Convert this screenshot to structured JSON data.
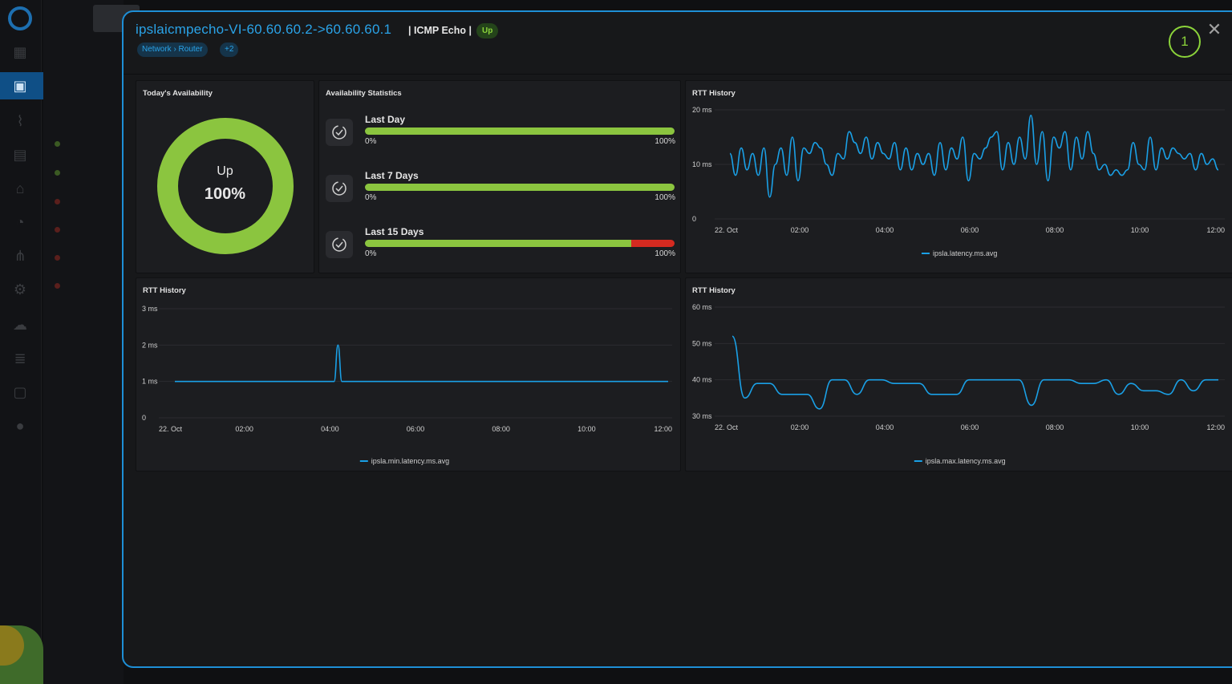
{
  "header": {
    "title": "ipslaicmpecho-VI-60.60.60.2->60.60.60.1",
    "subtitle": "| ICMP Echo |",
    "status": "Up",
    "tags": [
      "Network › Router",
      "+2"
    ],
    "count": "1"
  },
  "availability": {
    "title": "Today's Availability",
    "state": "Up",
    "percent_label": "100%",
    "percent": 100,
    "color": "#8bc53f"
  },
  "stats": {
    "title": "Availability Statistics",
    "rows": [
      {
        "label": "Last Day",
        "up_fraction": 1.0,
        "min_label": "0%",
        "max_label": "100%"
      },
      {
        "label": "Last 7 Days",
        "up_fraction": 1.0,
        "min_label": "0%",
        "max_label": "100%"
      },
      {
        "label": "Last 15 Days",
        "up_fraction": 0.86,
        "min_label": "0%",
        "max_label": "100%"
      }
    ]
  },
  "colors": {
    "accent": "#1e8fd6",
    "line": "#1aa0e6",
    "up": "#8bc53f",
    "down": "#d42a20"
  },
  "chart_data": [
    {
      "type": "line",
      "title": "RTT History",
      "y_ticks": [
        "0",
        "10 ms",
        "20 ms"
      ],
      "ylim": [
        0,
        20
      ],
      "x_ticks": [
        "22. Oct",
        "02:00",
        "04:00",
        "06:00",
        "08:00",
        "10:00",
        "12:00"
      ],
      "series": [
        {
          "name": "ipsla.latency.ms.avg",
          "values": [
            12,
            8,
            13,
            9,
            12,
            8,
            13,
            4,
            10,
            13,
            8,
            15,
            7,
            13,
            12,
            14,
            13,
            10,
            8,
            12,
            11,
            16,
            14,
            12,
            15,
            11,
            14,
            12,
            11,
            14,
            9,
            13,
            9,
            12,
            10,
            12,
            8,
            14,
            9,
            13,
            11,
            15,
            7,
            12,
            11,
            13,
            15,
            16,
            9,
            14,
            10,
            15,
            11,
            19,
            10,
            16,
            7,
            15,
            13,
            16,
            9,
            15,
            11,
            16,
            12,
            9,
            10,
            8,
            9,
            8,
            9,
            14,
            10,
            9,
            15,
            9,
            13,
            11,
            13,
            12,
            11,
            12,
            9,
            12,
            10,
            11,
            9
          ]
        }
      ],
      "grid": true,
      "legend": "bottom-center"
    },
    {
      "type": "line",
      "title": "RTT History",
      "y_ticks": [
        "0",
        "1 ms",
        "2 ms",
        "3 ms"
      ],
      "ylim": [
        0,
        3
      ],
      "x_ticks": [
        "22. Oct",
        "02:00",
        "04:00",
        "06:00",
        "08:00",
        "10:00",
        "12:00"
      ],
      "series": [
        {
          "name": "ipsla.min.latency.ms.avg",
          "values": [
            1,
            1,
            1,
            1,
            1,
            1,
            1,
            1,
            1,
            1,
            1,
            1,
            1,
            1,
            1,
            1,
            1,
            1,
            1,
            1,
            1,
            1,
            1,
            1,
            1,
            1,
            1,
            1,
            1,
            1,
            1,
            1,
            1,
            1,
            1,
            1,
            1,
            1,
            1,
            1,
            1,
            1,
            2,
            1,
            1,
            1,
            1,
            1,
            1,
            1,
            1,
            1,
            1,
            1,
            1,
            1,
            1,
            1,
            1,
            1,
            1,
            1,
            1,
            1,
            1,
            1,
            1,
            1,
            1,
            1,
            1,
            1,
            1,
            1,
            1,
            1,
            1,
            1,
            1,
            1,
            1,
            1,
            1,
            1,
            1,
            1,
            1,
            1,
            1,
            1,
            1,
            1,
            1,
            1,
            1,
            1,
            1,
            1,
            1,
            1,
            1,
            1,
            1,
            1,
            1,
            1,
            1,
            1,
            1,
            1,
            1,
            1,
            1,
            1,
            1,
            1,
            1,
            1,
            1,
            1,
            1,
            1,
            1,
            1,
            1,
            1,
            1,
            1
          ]
        }
      ],
      "grid": true,
      "legend": "bottom-center"
    },
    {
      "type": "line",
      "title": "RTT History",
      "y_ticks": [
        "30 ms",
        "40 ms",
        "50 ms",
        "60 ms"
      ],
      "ylim": [
        30,
        60
      ],
      "x_ticks": [
        "22. Oct",
        "02:00",
        "04:00",
        "06:00",
        "08:00",
        "10:00",
        "12:00"
      ],
      "series": [
        {
          "name": "ipsla.max.latency.ms.avg",
          "values": [
            52,
            35,
            39,
            39,
            36,
            36,
            36,
            32,
            40,
            40,
            36,
            40,
            40,
            39,
            39,
            39,
            36,
            36,
            36,
            40,
            40,
            40,
            40,
            40,
            33,
            40,
            40,
            40,
            39,
            39,
            40,
            36,
            39,
            37,
            37,
            36,
            40,
            37,
            40,
            40
          ]
        }
      ],
      "grid": true,
      "legend": "bottom-center"
    }
  ]
}
